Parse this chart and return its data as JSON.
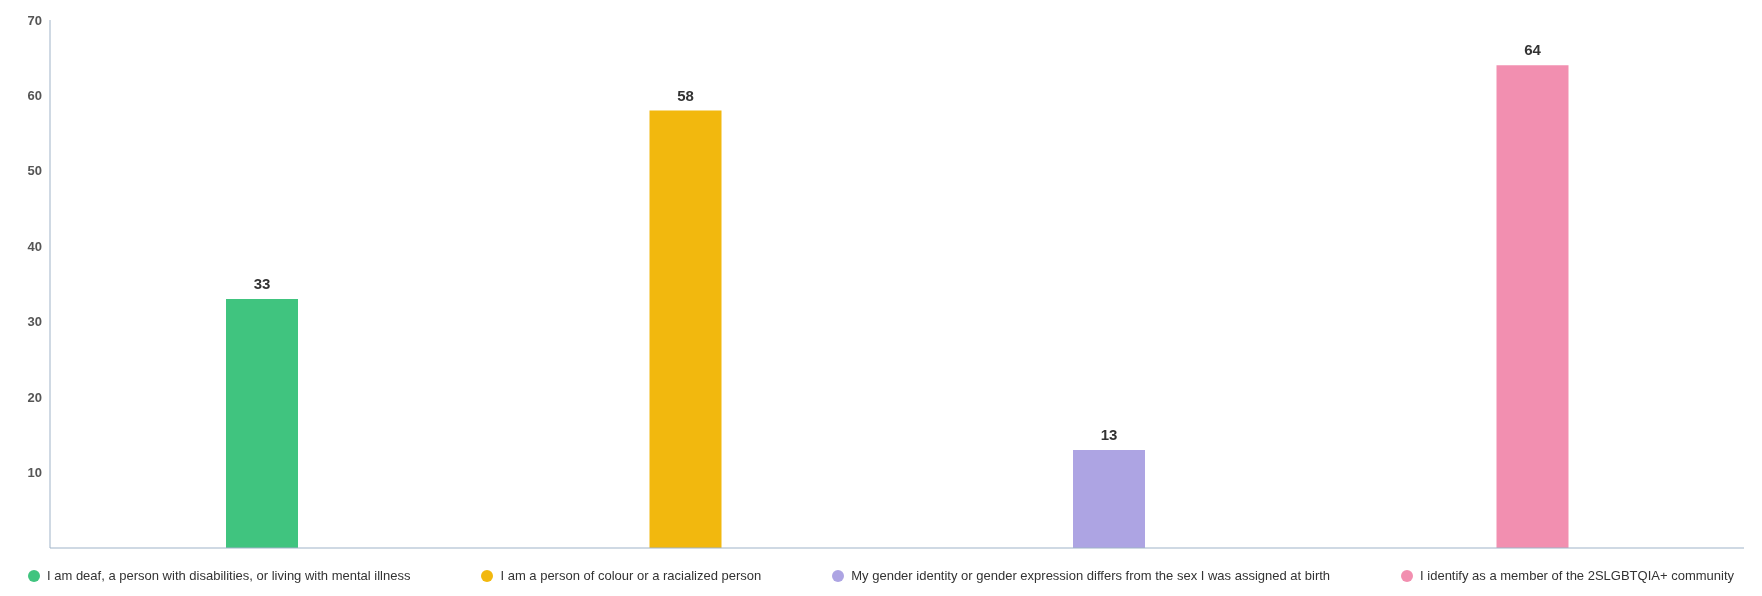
{
  "chart_data": {
    "type": "bar",
    "categories": [
      null,
      null,
      null,
      null
    ],
    "series": [
      {
        "name": "I am deaf, a person with disabilities, or living with mental illness",
        "color": "#40c47f",
        "values": [
          33,
          null,
          null,
          null
        ]
      },
      {
        "name": "I am a person of colour or a racialized person",
        "color": "#f2b80e",
        "values": [
          null,
          58,
          null,
          null
        ]
      },
      {
        "name": "My gender identity or gender expression differs from the sex I was assigned at birth",
        "color": "#ada4e3",
        "values": [
          null,
          null,
          13,
          null
        ]
      },
      {
        "name": "I identify as a member of the 2SLGBTQIA+ community",
        "color": "#f28fb0",
        "values": [
          null,
          null,
          null,
          64
        ]
      }
    ],
    "ylim": [
      0,
      70
    ],
    "yticks": [
      10,
      20,
      30,
      40,
      50,
      60,
      70
    ],
    "data_labels": true,
    "grid": false,
    "legend": "bottom"
  }
}
